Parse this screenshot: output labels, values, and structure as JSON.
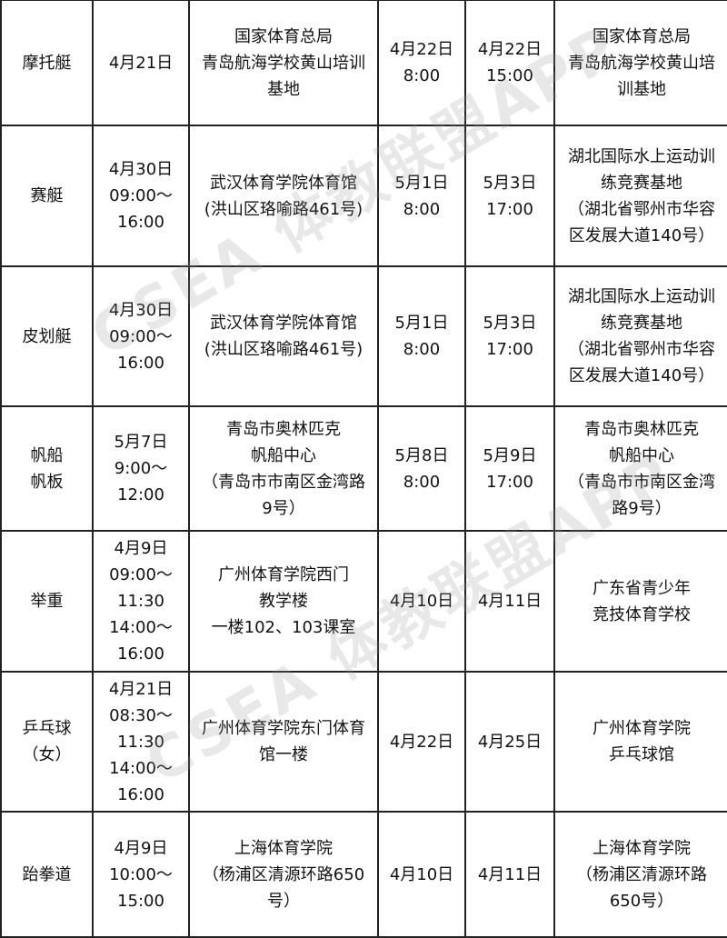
{
  "watermark": "CSEA 体教联盟APP",
  "rows": [
    {
      "sport": "摩托艇",
      "checkin": "4月21日",
      "checkin_place": "国家体育总局\n青岛航海学校黄山培训\n基地",
      "start": "4月22日\n8:00",
      "end": "4月22日\n15:00",
      "venue": "国家体育总局\n青岛航海学校黄山培\n训基地"
    },
    {
      "sport": "赛艇",
      "checkin": "4月30日\n09:00～\n16:00",
      "checkin_place": "武汉体育学院体育馆\n(洪山区珞喻路461号)",
      "start": "5月1日\n8:00",
      "end": "5月3日\n17:00",
      "venue": "湖北国际水上运动训\n练竞赛基地\n（湖北省鄂州市华容\n区发展大道140号）"
    },
    {
      "sport": "皮划艇",
      "checkin": "4月30日\n09:00～\n16:00",
      "checkin_place": "武汉体育学院体育馆\n(洪山区珞喻路461号)",
      "start": "5月1日\n8:00",
      "end": "5月3日\n17:00",
      "venue": "湖北国际水上运动训\n练竞赛基地\n（湖北省鄂州市华容\n区发展大道140号）"
    },
    {
      "sport": "帆船\n帆板",
      "checkin": "5月7日\n9:00～\n12:00",
      "checkin_place": "青岛市奥林匹克\n帆船中心\n（青岛市市南区金湾路\n9号）",
      "start": "5月8日\n8:00",
      "end": "5月9日\n17:00",
      "venue": "青岛市奥林匹克\n帆船中心\n（青岛市市南区金湾\n路9号）"
    },
    {
      "sport": "举重",
      "checkin": "4月9日\n09:00～\n11:30\n14:00～\n16:00",
      "checkin_place": "广州体育学院西门\n教学楼\n一楼102、103课室",
      "start": "4月10日",
      "end": "4月11日",
      "venue": "广东省青少年\n竞技体育学校"
    },
    {
      "sport": "乒乓球\n（女）",
      "checkin": "4月21日\n08:30～\n11:30\n14:00～\n16:00",
      "checkin_place": "广州体育学院东门体育\n馆一楼",
      "start": "4月22日",
      "end": "4月25日",
      "venue": "广州体育学院\n乒乓球馆"
    },
    {
      "sport": "跆拳道",
      "checkin": "4月9日\n10:00～\n15:00",
      "checkin_place": "上海体育学院\n（杨浦区清源环路650\n号）",
      "start": "4月10日",
      "end": "4月11日",
      "venue": "上海体育学院\n（杨浦区清源环路\n650号）"
    }
  ]
}
